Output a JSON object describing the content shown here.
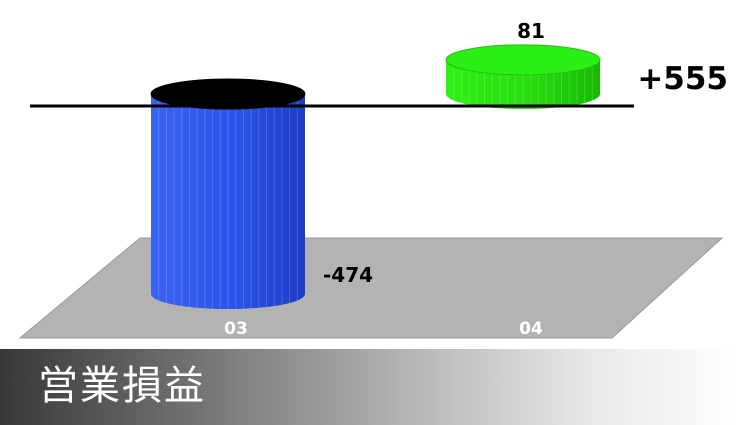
{
  "chart_data": {
    "type": "bar",
    "categories": [
      "03",
      "04"
    ],
    "values": [
      -474,
      81
    ],
    "data_labels": [
      "-474",
      "81"
    ],
    "difference_label": "+555",
    "bar_colors": [
      "#2d55e6",
      "#28e010"
    ],
    "ylim": [
      -520,
      100
    ]
  },
  "footer": {
    "title": "営業損益"
  }
}
